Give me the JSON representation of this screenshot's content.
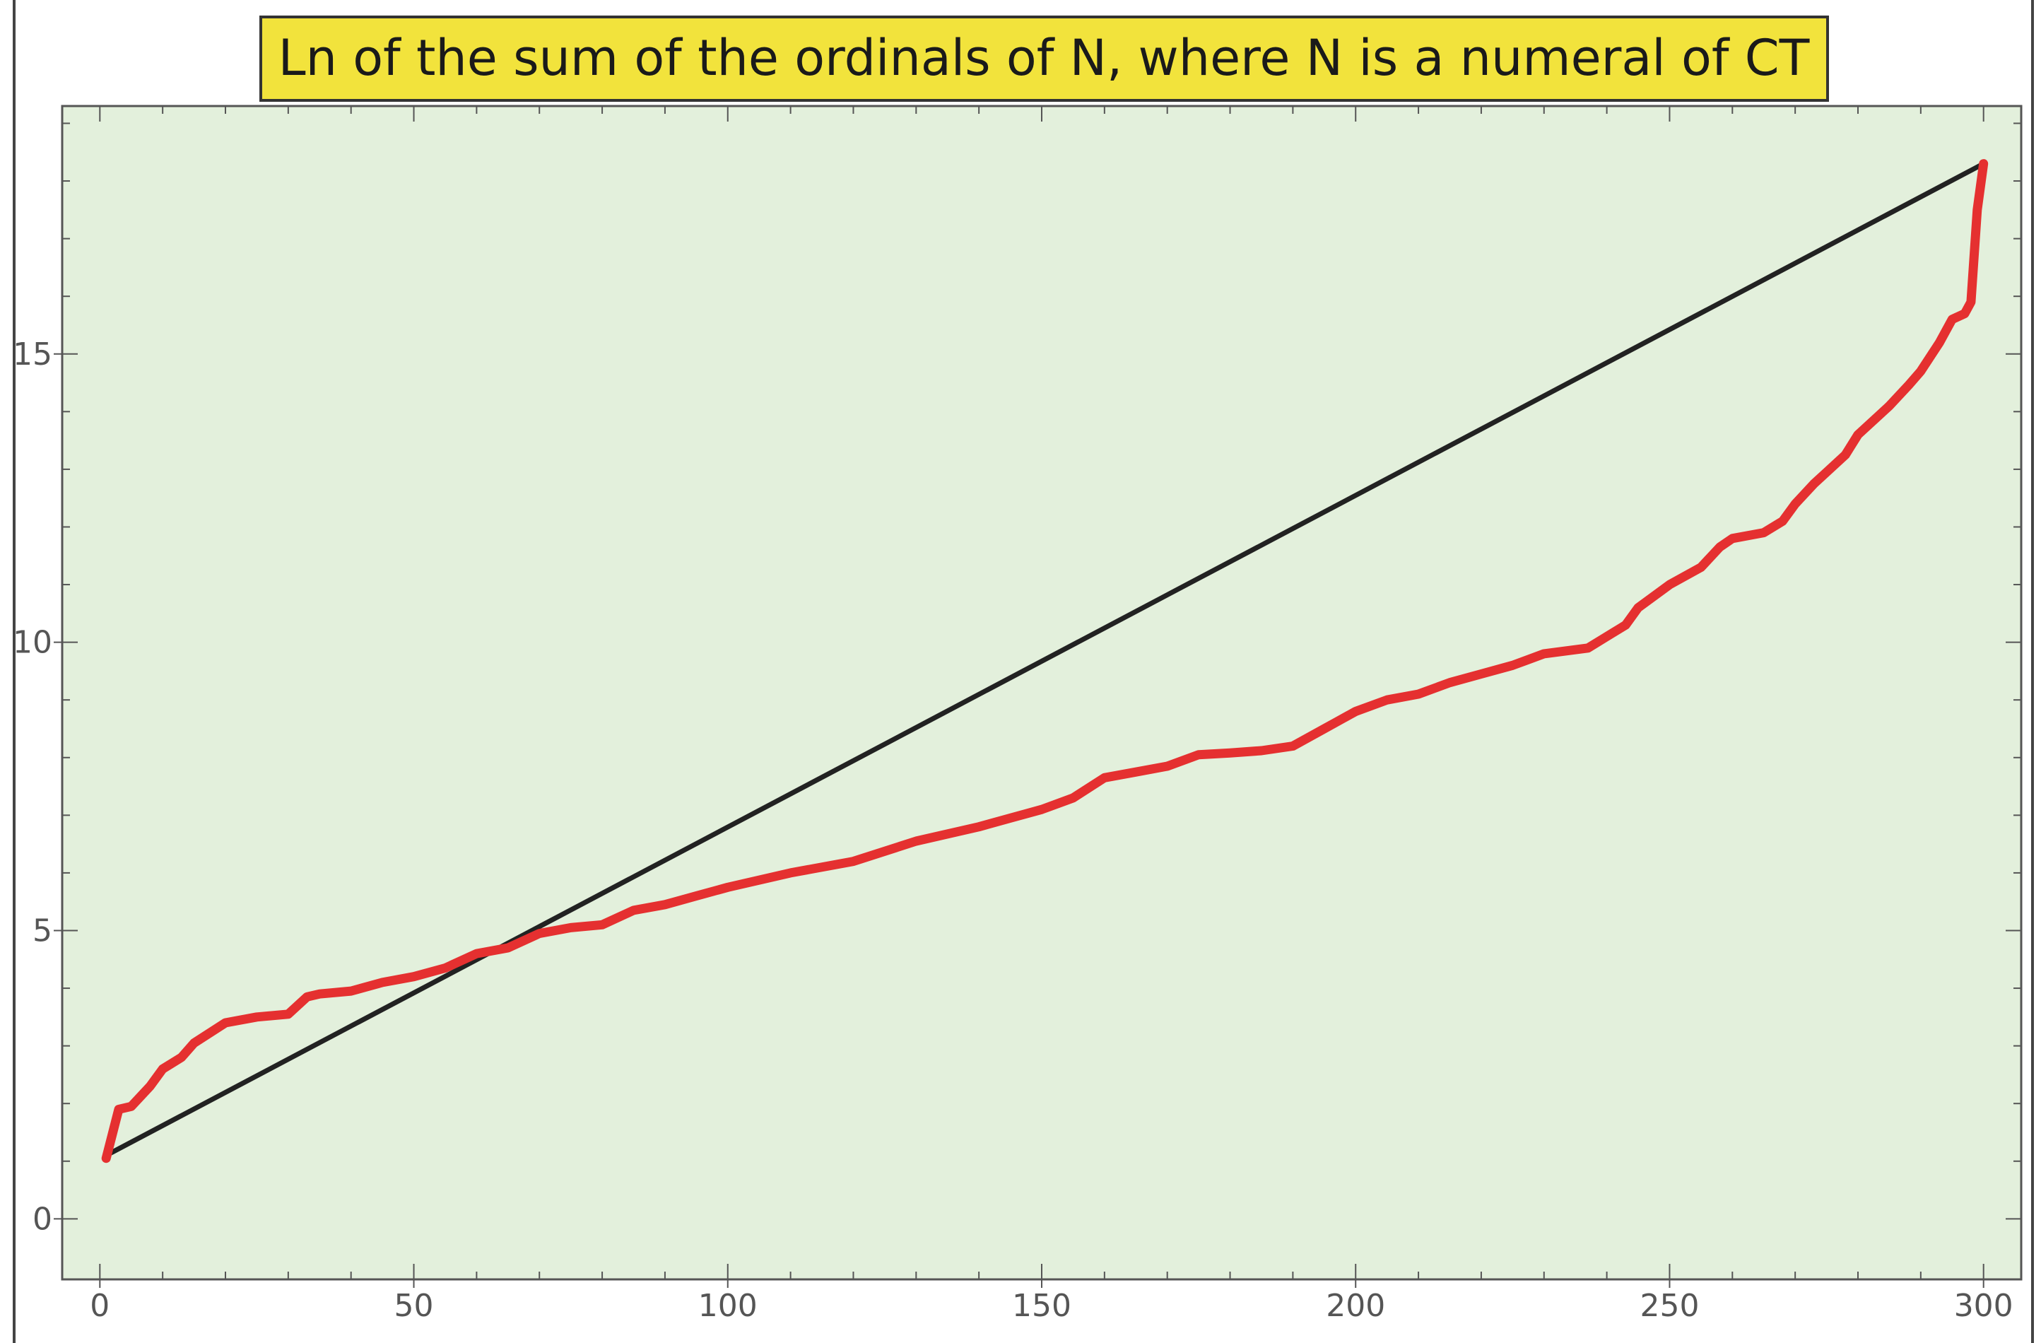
{
  "chart_data": {
    "type": "line",
    "title": "Ln of the sum of the ordinals of N, where N is a numeral of CT",
    "xlabel": "",
    "ylabel": "",
    "xlim": [
      -6,
      306
    ],
    "ylim": [
      -1.05,
      19.3
    ],
    "x_ticks": [
      0,
      50,
      100,
      150,
      200,
      250,
      300
    ],
    "y_ticks": [
      0,
      5,
      10,
      15
    ],
    "grid": false,
    "colors": {
      "background": "#e3f0dc",
      "title_box": "#f2e33c",
      "red_series": "#e53030",
      "black_series": "#222222",
      "frame": "#555555"
    },
    "series": [
      {
        "color": "#222222",
        "x": [
          1,
          300
        ],
        "y": [
          1.1,
          18.3
        ]
      },
      {
        "color": "#e53030",
        "x": [
          1,
          3,
          5,
          8,
          10,
          13,
          15,
          20,
          25,
          30,
          33,
          35,
          40,
          45,
          50,
          55,
          60,
          65,
          70,
          75,
          80,
          85,
          90,
          95,
          100,
          110,
          120,
          130,
          140,
          145,
          150,
          155,
          160,
          165,
          170,
          175,
          180,
          185,
          190,
          195,
          200,
          205,
          210,
          215,
          220,
          225,
          230,
          237,
          240,
          243,
          245,
          250,
          255,
          258,
          260,
          265,
          268,
          270,
          273,
          275,
          278,
          280,
          283,
          285,
          288,
          290,
          293,
          295,
          297,
          298,
          299,
          300
        ],
        "y": [
          1.05,
          1.9,
          1.95,
          2.3,
          2.6,
          2.8,
          3.05,
          3.4,
          3.5,
          3.55,
          3.85,
          3.9,
          3.95,
          4.1,
          4.2,
          4.35,
          4.6,
          4.7,
          4.95,
          5.05,
          5.1,
          5.35,
          5.45,
          5.6,
          5.75,
          6.0,
          6.2,
          6.55,
          6.8,
          6.95,
          7.1,
          7.3,
          7.65,
          7.75,
          7.85,
          8.05,
          8.08,
          8.12,
          8.2,
          8.5,
          8.8,
          9.0,
          9.1,
          9.3,
          9.45,
          9.6,
          9.8,
          9.9,
          10.1,
          10.3,
          10.6,
          11.0,
          11.3,
          11.65,
          11.8,
          11.9,
          12.1,
          12.4,
          12.75,
          12.95,
          13.25,
          13.6,
          13.9,
          14.1,
          14.45,
          14.7,
          15.2,
          15.6,
          15.7,
          15.9,
          17.5,
          18.3
        ]
      }
    ]
  }
}
